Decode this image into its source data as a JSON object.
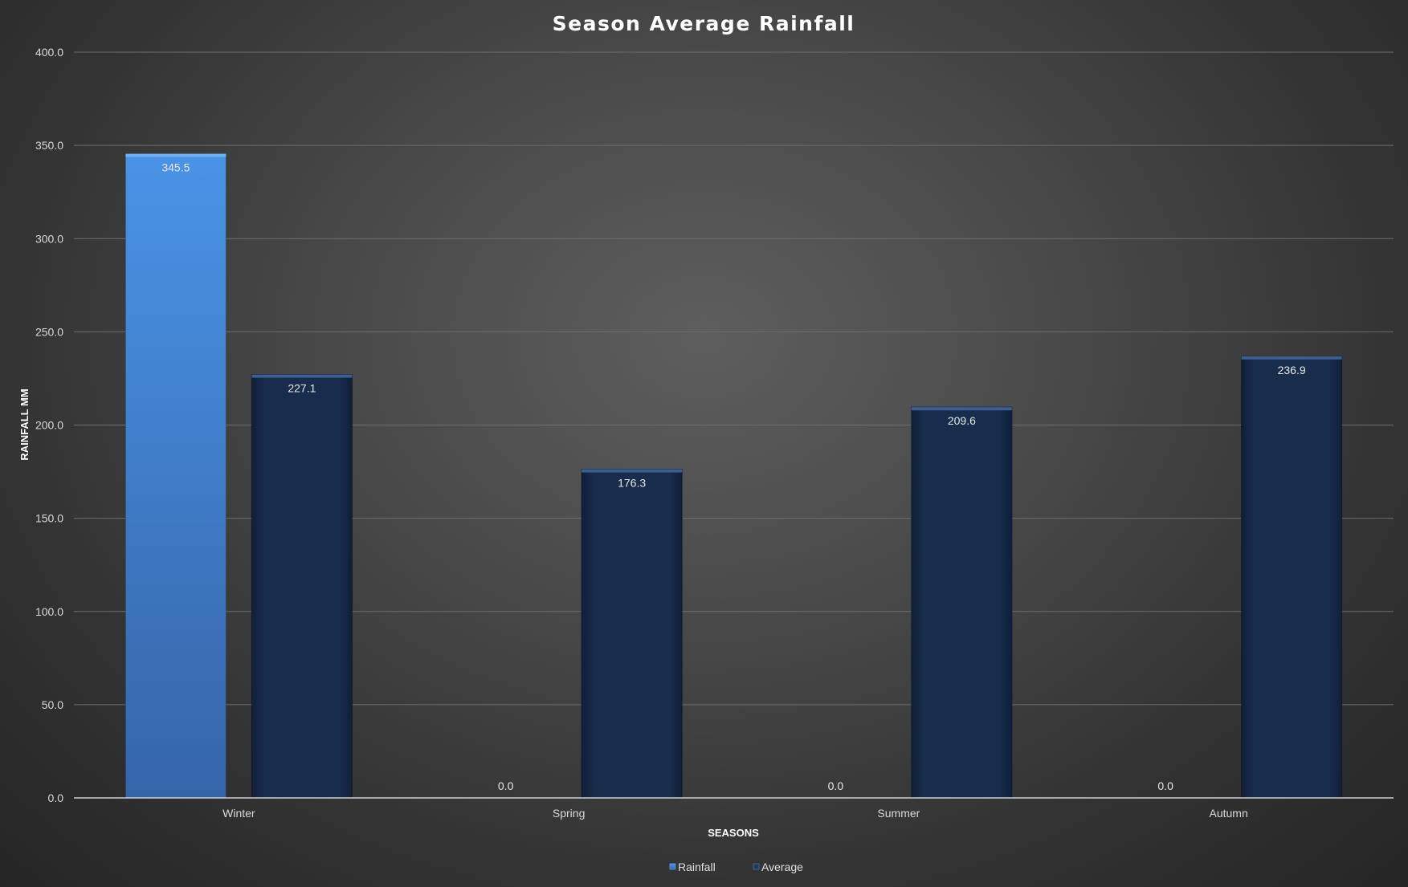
{
  "chart_data": {
    "type": "bar",
    "title": "Season Average Rainfall",
    "xlabel": "SEASONS",
    "ylabel": "RAINFALL MM",
    "categories": [
      "Winter",
      "Spring",
      "Summer",
      "Autumn"
    ],
    "series": [
      {
        "name": "Rainfall",
        "values": [
          345.5,
          0.0,
          0.0,
          0.0
        ],
        "color": "#3f85d6"
      },
      {
        "name": "Average",
        "values": [
          227.1,
          176.3,
          209.6,
          236.9
        ],
        "color": "#172b4b"
      }
    ],
    "ylim": [
      0,
      400
    ],
    "yticks": [
      "0.0",
      "50.0",
      "100.0",
      "150.0",
      "200.0",
      "250.0",
      "300.0",
      "350.0",
      "400.0"
    ],
    "value_format": "0.0",
    "grid": true,
    "legend_position": "bottom"
  }
}
